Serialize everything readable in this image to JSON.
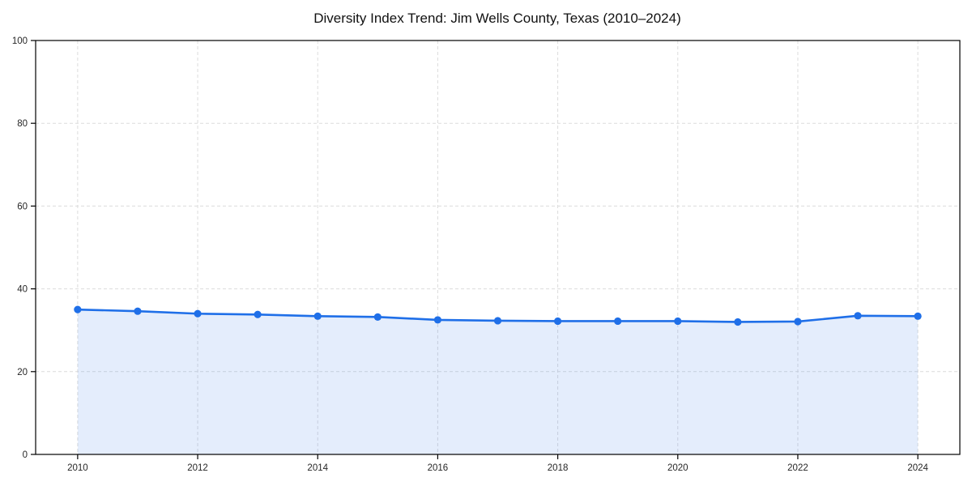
{
  "chart_data": {
    "type": "line",
    "title": "Diversity Index Trend: Jim Wells County, Texas (2010–2024)",
    "xlabel": "",
    "ylabel": "",
    "x": [
      2010,
      2011,
      2012,
      2013,
      2014,
      2015,
      2016,
      2017,
      2018,
      2019,
      2020,
      2021,
      2022,
      2023,
      2024
    ],
    "series": [
      {
        "name": "Diversity Index",
        "values": [
          35.0,
          34.6,
          34.0,
          33.8,
          33.4,
          33.2,
          32.5,
          32.3,
          32.2,
          32.2,
          32.2,
          32.0,
          32.1,
          33.5,
          33.4
        ]
      }
    ],
    "xlim": [
      2009.3,
      2024.7
    ],
    "ylim": [
      0,
      100
    ],
    "xticks": [
      2010,
      2012,
      2014,
      2016,
      2018,
      2020,
      2022,
      2024
    ],
    "yticks": [
      0,
      20,
      40,
      60,
      80,
      100
    ],
    "grid": true,
    "grid_style": "dashed",
    "legend": false,
    "area_fill": true,
    "marker": "circle",
    "colors": {
      "line": "#1f6fe8",
      "marker": "#1f6fe8",
      "area_fill": "#e2edfb",
      "grid": "#dcdcdc",
      "axis": "#000000",
      "tick_text": "#262626",
      "title_text": "#111111",
      "background": "#ffffff"
    }
  }
}
